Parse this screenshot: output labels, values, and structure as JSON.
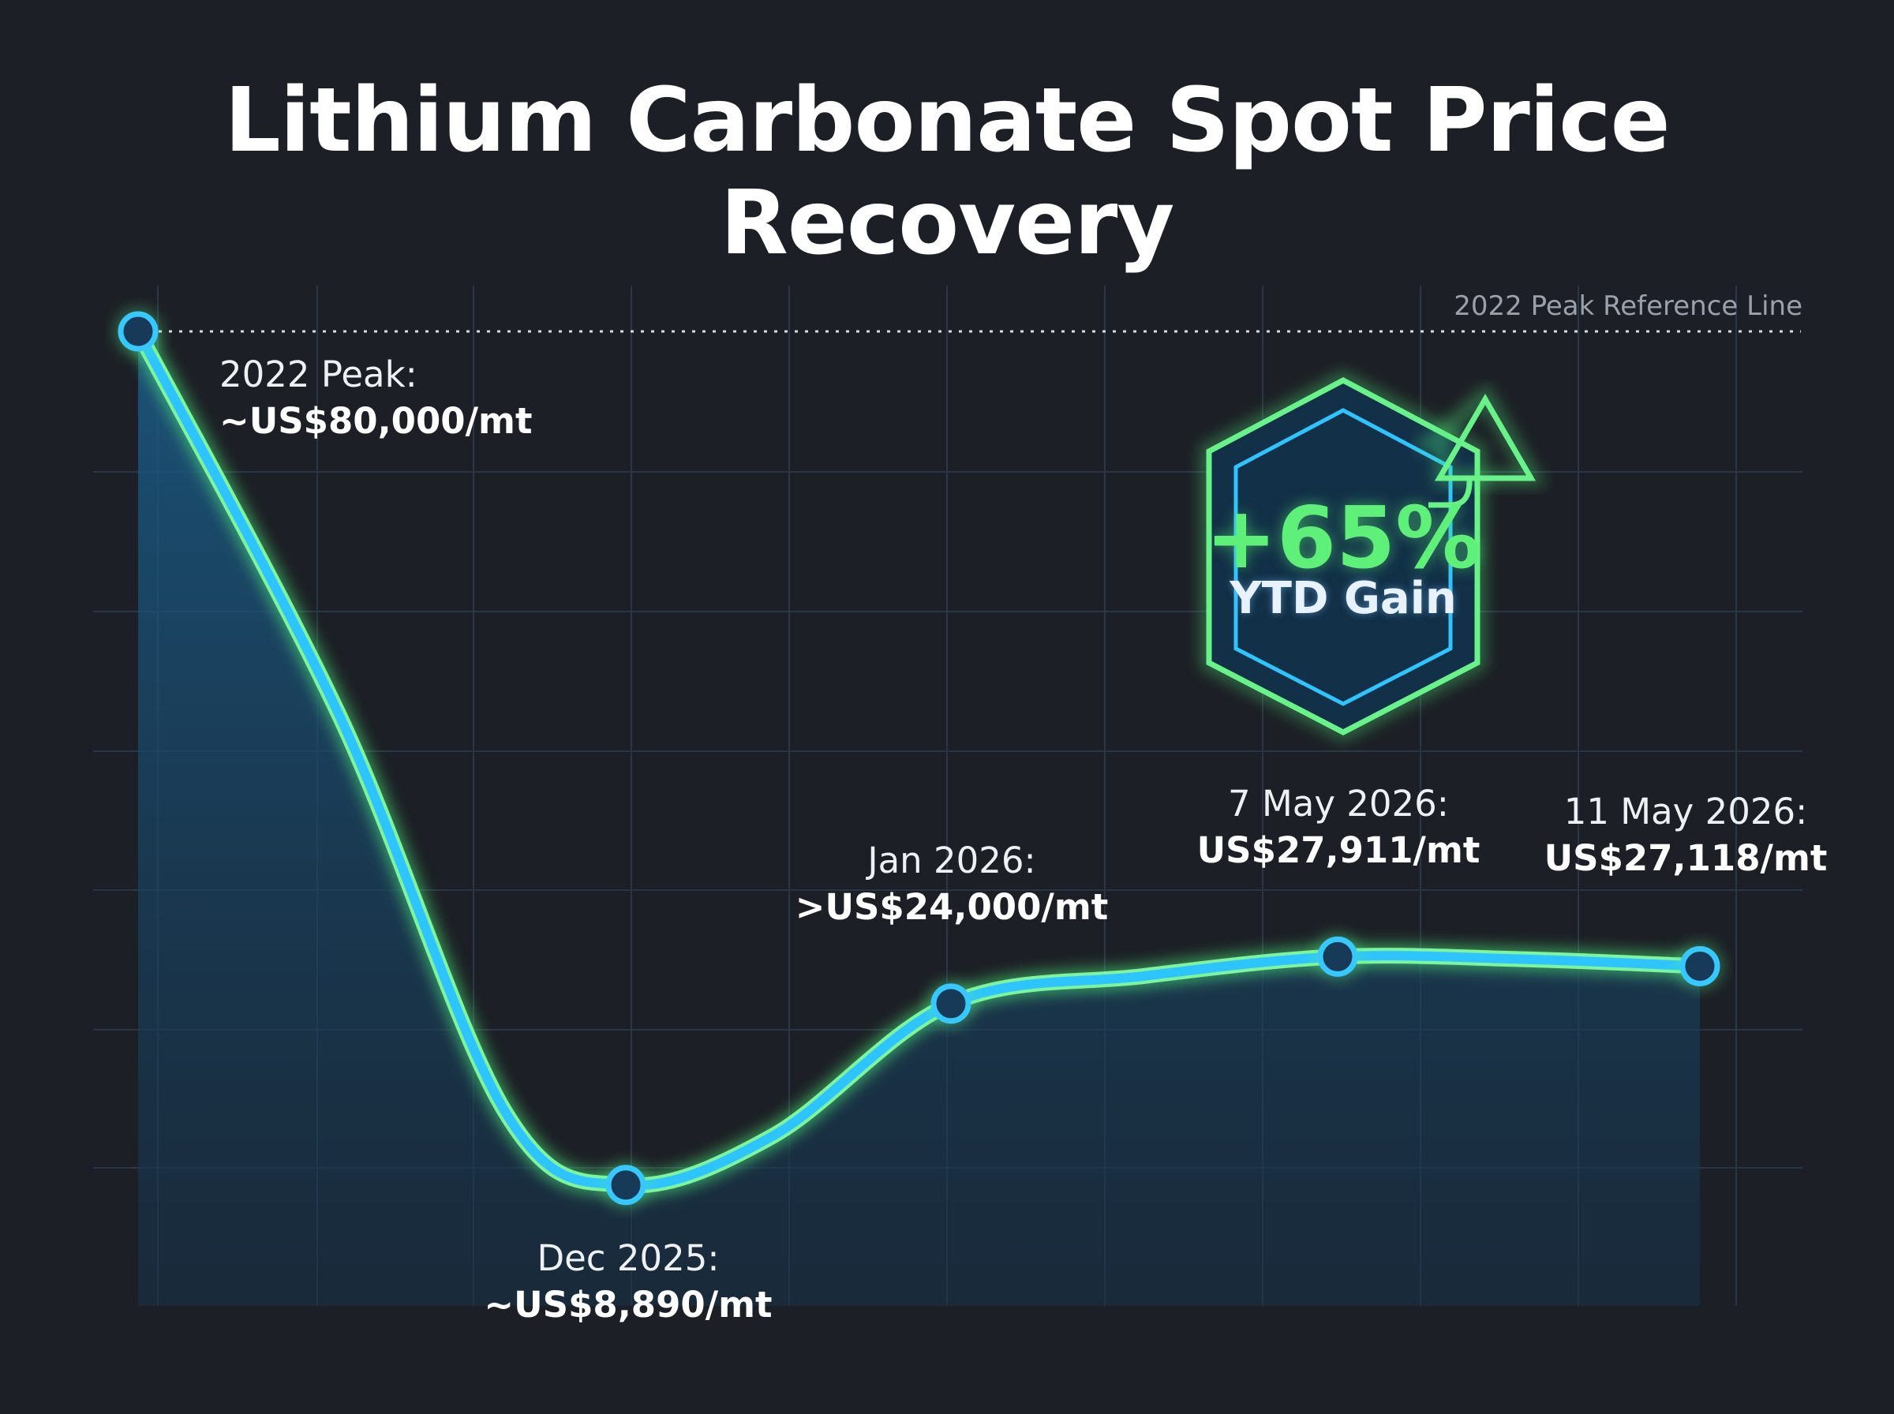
{
  "chart_data": {
    "type": "line",
    "title": "Lithium Carbonate Spot Price Recovery",
    "unit": "US$/mt",
    "reference_line": {
      "label": "2022 Peak Reference Line",
      "value": 80000
    },
    "points": [
      {
        "date": "2022 Peak:",
        "value_label": "~US$80,000/mt",
        "value": 80000
      },
      {
        "date": "Dec 2025:",
        "value_label": "~US$8,890/mt",
        "value": 8890
      },
      {
        "date": "Jan 2026:",
        "value_label": ">US$24,000/mt",
        "value": 24000
      },
      {
        "date": "7 May 2026:",
        "value_label": "US$27,911/mt",
        "value": 27911
      },
      {
        "date": "11 May 2026:",
        "value_label": "US$27,118/mt",
        "value": 27118
      }
    ],
    "badge": {
      "value": "+65%",
      "label": "YTD Gain"
    },
    "grid": true,
    "colors": {
      "background": "#1c1f25",
      "line": "#2ec4ff",
      "glow": "#53f08a",
      "area": "#1a4d74",
      "badge_text": "#5ff07a"
    }
  }
}
